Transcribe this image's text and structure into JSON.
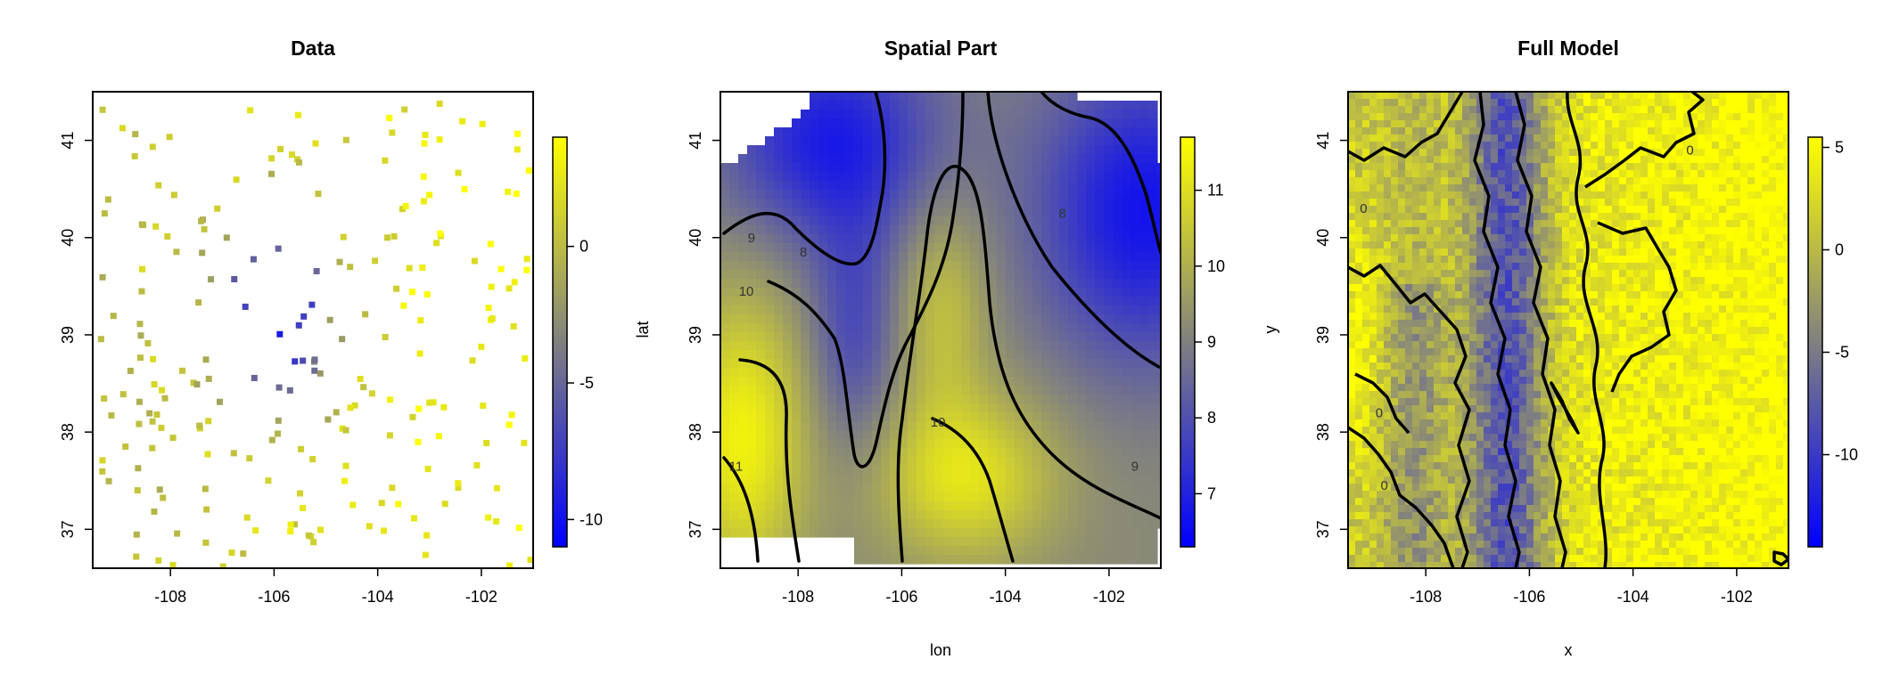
{
  "palette": {
    "low": "#0000ff",
    "mid": "#808080",
    "high": "#ffff00",
    "contour": "#000000"
  },
  "chart_data": [
    {
      "type": "heatmap",
      "title": "Data",
      "xlabel": "",
      "ylabel": "",
      "xlim": [
        -109.5,
        -101.0
      ],
      "ylim": [
        36.6,
        41.5
      ],
      "x_ticks": [
        -108,
        -106,
        -104,
        -102
      ],
      "x_tick_labels": [
        "-108",
        "-106",
        "-104",
        "-102"
      ],
      "y_ticks": [
        37,
        38,
        39,
        40,
        41
      ],
      "y_tick_labels": [
        "37",
        "38",
        "39",
        "40",
        "41"
      ],
      "colorbar": {
        "range": [
          -11,
          4
        ],
        "ticks": [
          -10,
          -5,
          0
        ],
        "tick_labels": [
          "-10",
          "-5",
          "0"
        ]
      },
      "description_note": "scattered station values on a grid; low values concentrated near lon -106, lat 38.5-40"
    },
    {
      "type": "heatmap",
      "title": "Spatial Part",
      "xlabel": "lon",
      "ylabel": "lat",
      "xlim": [
        -109.5,
        -101.0
      ],
      "ylim": [
        36.6,
        41.5
      ],
      "x_ticks": [
        -108,
        -106,
        -104,
        -102
      ],
      "x_tick_labels": [
        "-108",
        "-106",
        "-104",
        "-102"
      ],
      "y_ticks": [
        37,
        38,
        39,
        40,
        41
      ],
      "y_tick_labels": [
        "37",
        "38",
        "39",
        "40",
        "41"
      ],
      "colorbar": {
        "range": [
          6.3,
          11.7
        ],
        "ticks": [
          7,
          8,
          9,
          10,
          11
        ],
        "tick_labels": [
          "7",
          "8",
          "9",
          "10",
          "11"
        ]
      },
      "contour_labels": [
        {
          "text": "9",
          "lon": -108.9,
          "lat": 40.0
        },
        {
          "text": "8",
          "lon": -107.9,
          "lat": 39.85
        },
        {
          "text": "10",
          "lon": -109.0,
          "lat": 39.45
        },
        {
          "text": "8",
          "lon": -102.9,
          "lat": 40.25
        },
        {
          "text": "10",
          "lon": -105.3,
          "lat": 38.1
        },
        {
          "text": "11",
          "lon": -109.2,
          "lat": 37.65
        },
        {
          "text": "9",
          "lon": -101.5,
          "lat": 37.65
        }
      ]
    },
    {
      "type": "heatmap",
      "title": "Full Model",
      "xlabel": "x",
      "ylabel": "y",
      "xlim": [
        -109.5,
        -101.0
      ],
      "ylim": [
        36.6,
        41.5
      ],
      "x_ticks": [
        -108,
        -106,
        -104,
        -102
      ],
      "x_tick_labels": [
        "-108",
        "-106",
        "-104",
        "-102"
      ],
      "y_ticks": [
        37,
        38,
        39,
        40,
        41
      ],
      "y_tick_labels": [
        "37",
        "38",
        "39",
        "40",
        "41"
      ],
      "colorbar": {
        "range": [
          -14.5,
          5.5
        ],
        "ticks": [
          -10,
          -5,
          0,
          5
        ],
        "tick_labels": [
          "-10",
          "-5",
          "0",
          "5"
        ]
      },
      "contour_labels": [
        {
          "text": "0",
          "lon": -102.9,
          "lat": 40.9
        },
        {
          "text": "0",
          "lon": -109.2,
          "lat": 40.3
        },
        {
          "text": "0",
          "lon": -108.9,
          "lat": 38.2
        },
        {
          "text": "0",
          "lon": -108.8,
          "lat": 37.45
        }
      ]
    }
  ]
}
